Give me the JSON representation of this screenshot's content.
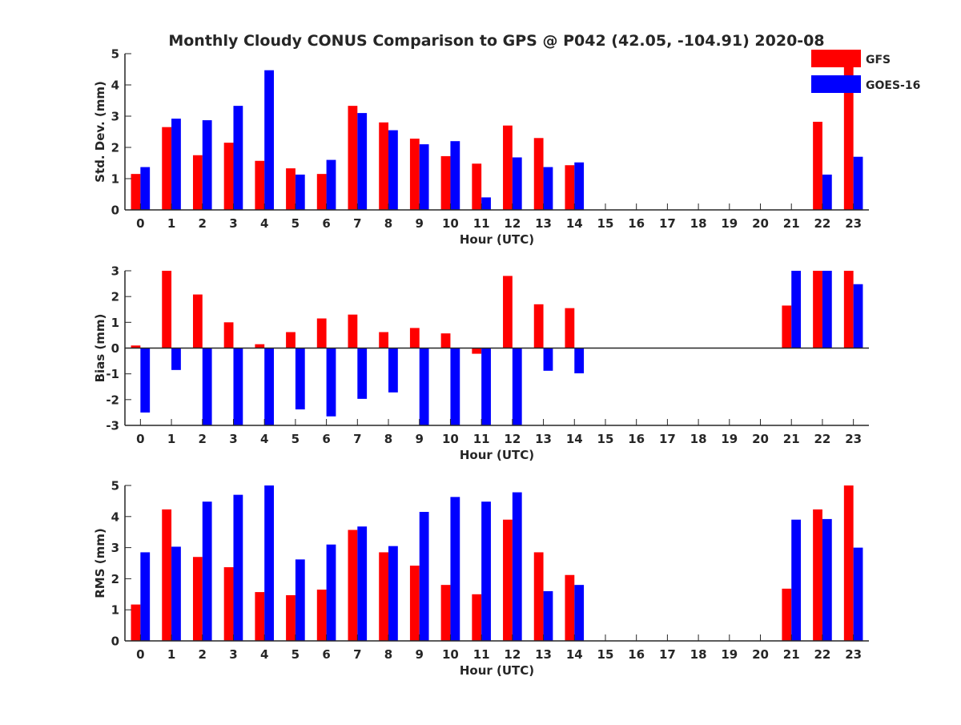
{
  "figure": {
    "title": "Monthly Cloudy CONUS Comparison to GPS @ P042 (42.05, -104.91) 2020-08"
  },
  "legend": {
    "placement": "top-right",
    "entries": [
      {
        "name": "GFS",
        "color": "#ff0000"
      },
      {
        "name": "GOES-16",
        "color": "#0000ff"
      }
    ]
  },
  "chart_data": [
    {
      "type": "bar",
      "ylabel": "Std. Dev. (mm)",
      "xlabel": "Hour (UTC)",
      "ylim": [
        0,
        5
      ],
      "yticks": [
        "0",
        "1",
        "2",
        "3",
        "4",
        "5"
      ],
      "categories": [
        "0",
        "1",
        "2",
        "3",
        "4",
        "5",
        "6",
        "7",
        "8",
        "9",
        "10",
        "11",
        "12",
        "13",
        "14",
        "15",
        "16",
        "17",
        "18",
        "19",
        "20",
        "21",
        "22",
        "23"
      ],
      "series": [
        {
          "name": "GFS",
          "color": "#ff0000",
          "values": [
            1.15,
            2.65,
            1.75,
            2.15,
            1.57,
            1.33,
            1.15,
            3.33,
            2.8,
            2.28,
            1.72,
            1.48,
            2.7,
            2.3,
            1.43,
            null,
            null,
            null,
            null,
            null,
            null,
            null,
            2.82,
            5.0
          ]
        },
        {
          "name": "GOES-16",
          "color": "#0000ff",
          "values": [
            1.37,
            2.92,
            2.87,
            3.33,
            4.47,
            1.13,
            1.6,
            3.1,
            2.55,
            2.1,
            2.2,
            0.4,
            1.68,
            1.37,
            1.52,
            null,
            null,
            null,
            null,
            null,
            null,
            null,
            1.13,
            1.7
          ]
        }
      ]
    },
    {
      "type": "bar",
      "ylabel": "Bias (mm)",
      "xlabel": "Hour (UTC)",
      "ylim": [
        -3,
        3
      ],
      "yticks": [
        "-3",
        "-2",
        "-1",
        "0",
        "1",
        "2",
        "3"
      ],
      "categories": [
        "0",
        "1",
        "2",
        "3",
        "4",
        "5",
        "6",
        "7",
        "8",
        "9",
        "10",
        "11",
        "12",
        "13",
        "14",
        "15",
        "16",
        "17",
        "18",
        "19",
        "20",
        "21",
        "22",
        "23"
      ],
      "series": [
        {
          "name": "GFS",
          "color": "#ff0000",
          "values": [
            0.1,
            3.0,
            2.08,
            1.0,
            0.15,
            0.62,
            1.15,
            1.3,
            0.62,
            0.78,
            0.57,
            -0.22,
            2.8,
            1.7,
            1.55,
            null,
            null,
            null,
            null,
            null,
            null,
            1.65,
            3.0,
            3.0
          ]
        },
        {
          "name": "GOES-16",
          "color": "#0000ff",
          "values": [
            -2.5,
            -0.85,
            -3.0,
            -3.0,
            -3.0,
            -2.38,
            -2.65,
            -1.97,
            -1.72,
            -3.0,
            -3.0,
            -3.0,
            -3.0,
            -0.88,
            -0.98,
            null,
            null,
            null,
            null,
            null,
            null,
            3.0,
            3.0,
            2.48
          ]
        }
      ]
    },
    {
      "type": "bar",
      "ylabel": "RMS (mm)",
      "xlabel": "Hour (UTC)",
      "ylim": [
        0,
        5
      ],
      "yticks": [
        "0",
        "1",
        "2",
        "3",
        "4",
        "5"
      ],
      "categories": [
        "0",
        "1",
        "2",
        "3",
        "4",
        "5",
        "6",
        "7",
        "8",
        "9",
        "10",
        "11",
        "12",
        "13",
        "14",
        "15",
        "16",
        "17",
        "18",
        "19",
        "20",
        "21",
        "22",
        "23"
      ],
      "series": [
        {
          "name": "GFS",
          "color": "#ff0000",
          "values": [
            1.17,
            4.23,
            2.7,
            2.37,
            1.57,
            1.47,
            1.65,
            3.57,
            2.85,
            2.42,
            1.8,
            1.5,
            3.9,
            2.85,
            2.12,
            null,
            null,
            null,
            null,
            null,
            null,
            1.68,
            4.23,
            5.0
          ]
        },
        {
          "name": "GOES-16",
          "color": "#0000ff",
          "values": [
            2.85,
            3.03,
            4.48,
            4.7,
            5.0,
            2.62,
            3.1,
            3.68,
            3.05,
            4.15,
            4.63,
            4.48,
            4.78,
            1.6,
            1.8,
            null,
            null,
            null,
            null,
            null,
            null,
            3.9,
            3.92,
            3.0
          ]
        }
      ]
    }
  ]
}
